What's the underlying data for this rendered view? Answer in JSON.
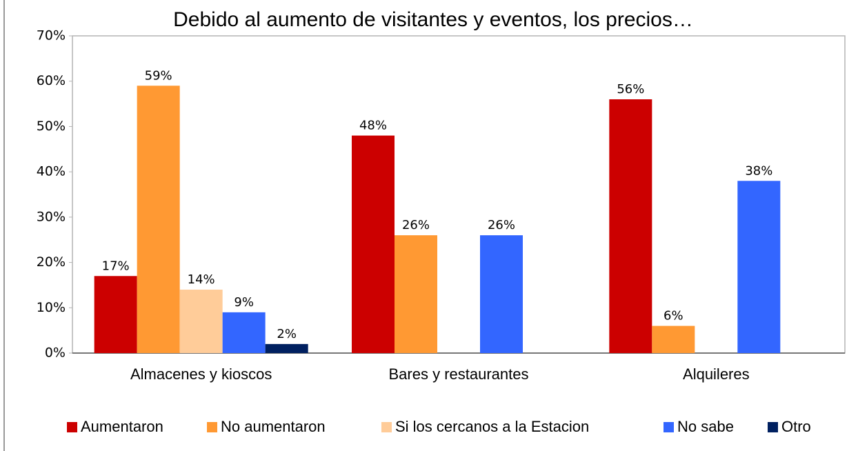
{
  "chart_data": {
    "type": "bar",
    "title": "Debido al aumento de visitantes y eventos, los precios…",
    "categories": [
      "Almacenes y kioscos",
      "Bares y restaurantes",
      "Alquileres"
    ],
    "series": [
      {
        "name": "Aumentaron",
        "color": "#cc0000",
        "values": [
          17,
          48,
          56
        ],
        "value_labels": [
          "17%",
          "48%",
          "56%"
        ]
      },
      {
        "name": "No aumentaron",
        "color": "#ff9933",
        "values": [
          59,
          26,
          6
        ],
        "value_labels": [
          "59%",
          "26%",
          "6%"
        ]
      },
      {
        "name": "Si los cercanos a la Estacion",
        "color": "#ffcc99",
        "values": [
          14,
          null,
          null
        ],
        "value_labels": [
          "14%",
          null,
          null
        ]
      },
      {
        "name": "No sabe",
        "color": "#3366ff",
        "values": [
          9,
          26,
          38
        ],
        "value_labels": [
          "9%",
          "26%",
          "38%"
        ]
      },
      {
        "name": "Otro",
        "color": "#002060",
        "values": [
          2,
          null,
          null
        ],
        "value_labels": [
          "2%",
          null,
          null
        ]
      }
    ],
    "ylim": [
      0,
      70
    ],
    "yticks": [
      {
        "value": 0,
        "label": "0%"
      },
      {
        "value": 10,
        "label": "10%"
      },
      {
        "value": 20,
        "label": "20%"
      },
      {
        "value": 30,
        "label": "30%"
      },
      {
        "value": 40,
        "label": "40%"
      },
      {
        "value": 50,
        "label": "50%"
      },
      {
        "value": 60,
        "label": "60%"
      },
      {
        "value": 70,
        "label": "70%"
      }
    ],
    "legend": "bottom"
  }
}
